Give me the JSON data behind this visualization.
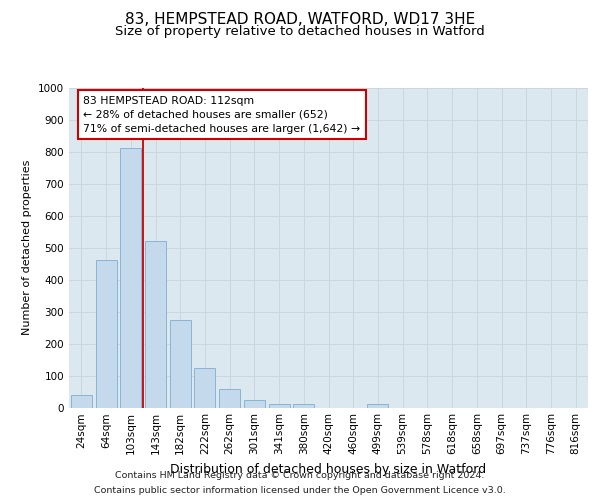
{
  "title": "83, HEMPSTEAD ROAD, WATFORD, WD17 3HE",
  "subtitle": "Size of property relative to detached houses in Watford",
  "xlabel": "Distribution of detached houses by size in Watford",
  "ylabel": "Number of detached properties",
  "footer_line1": "Contains HM Land Registry data © Crown copyright and database right 2024.",
  "footer_line2": "Contains public sector information licensed under the Open Government Licence v3.0.",
  "annotation_line1": "83 HEMPSTEAD ROAD: 112sqm",
  "annotation_line2": "← 28% of detached houses are smaller (652)",
  "annotation_line3": "71% of semi-detached houses are larger (1,642) →",
  "bar_color": "#c5d9ed",
  "bar_edge_color": "#8ab4d4",
  "categories": [
    "24sqm",
    "64sqm",
    "103sqm",
    "143sqm",
    "182sqm",
    "222sqm",
    "262sqm",
    "301sqm",
    "341sqm",
    "380sqm",
    "420sqm",
    "460sqm",
    "499sqm",
    "539sqm",
    "578sqm",
    "618sqm",
    "658sqm",
    "697sqm",
    "737sqm",
    "776sqm",
    "816sqm"
  ],
  "values": [
    40,
    460,
    810,
    520,
    275,
    125,
    58,
    22,
    12,
    12,
    0,
    0,
    10,
    0,
    0,
    0,
    0,
    0,
    0,
    0,
    0
  ],
  "ylim": [
    0,
    1000
  ],
  "yticks": [
    0,
    100,
    200,
    300,
    400,
    500,
    600,
    700,
    800,
    900,
    1000
  ],
  "property_line_x": 2.5,
  "grid_color": "#ccd6e0",
  "bg_color": "#dce8f0",
  "fig_bg": "#ffffff",
  "red_line_color": "#cc0000",
  "title_fontsize": 11,
  "subtitle_fontsize": 9.5,
  "xlabel_fontsize": 9,
  "ylabel_fontsize": 8,
  "tick_fontsize": 7.5,
  "annotation_fontsize": 7.8,
  "footer_fontsize": 6.8
}
